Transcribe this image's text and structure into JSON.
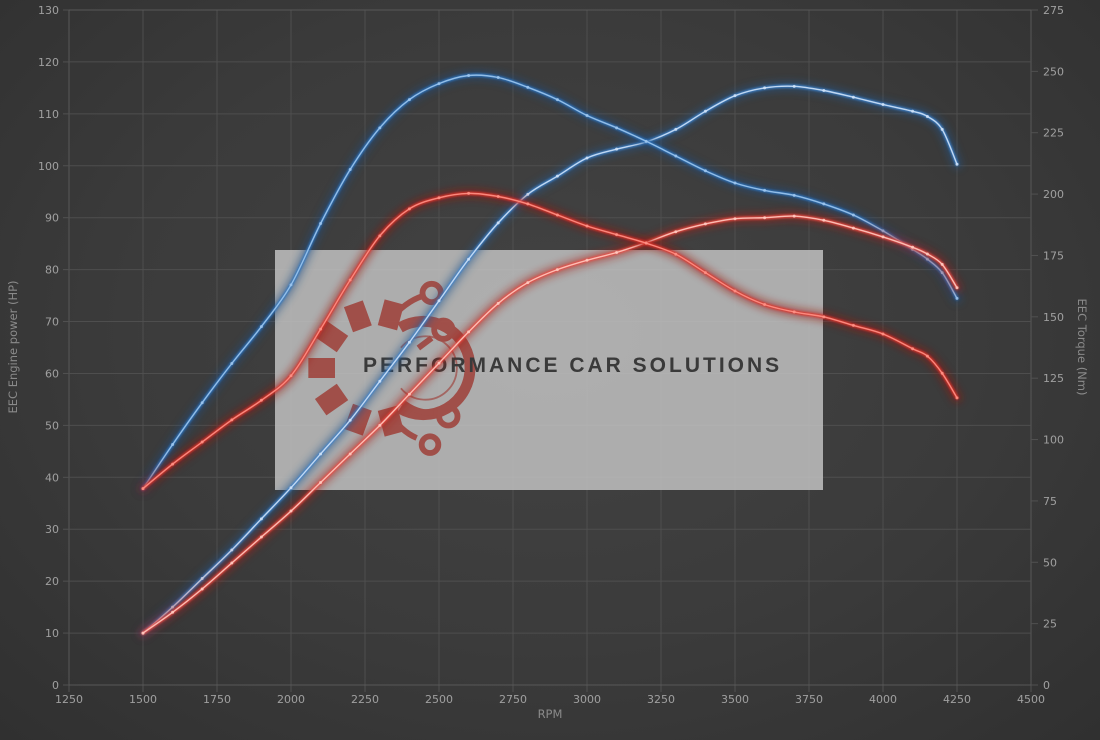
{
  "chart": {
    "x_axis": {
      "title": "RPM",
      "min": 1250,
      "max": 4500,
      "step": 250,
      "tick_labels": [
        "1250",
        "1500",
        "1750",
        "2000",
        "2250",
        "2500",
        "2750",
        "3000",
        "3250",
        "3500",
        "3750",
        "4000",
        "4250",
        "4500"
      ]
    },
    "y_axis_left": {
      "title": "EEC Engine power (HP)",
      "min": 0,
      "max": 130,
      "step": 10,
      "tick_labels": [
        "0",
        "10",
        "20",
        "30",
        "40",
        "50",
        "60",
        "70",
        "80",
        "90",
        "100",
        "110",
        "120",
        "130"
      ]
    },
    "y_axis_right": {
      "title": "EEC Torque (Nm)",
      "min": 0,
      "max": 275,
      "step": 25,
      "tick_labels": [
        "0",
        "25",
        "50",
        "75",
        "100",
        "125",
        "150",
        "175",
        "200",
        "225",
        "250",
        "275"
      ]
    }
  },
  "watermark": {
    "text": "PERFORMANCE CAR SOLUTIONS",
    "logo": "gear-with-circuit-traces"
  },
  "colors": {
    "background": "#3a3a3a",
    "grid": "#515151",
    "plot_border": "#5c5c5c",
    "tick_text": "#a0a0a0",
    "axis_title_text": "#8a8a8a",
    "watermark_bg": "rgba(198,198,198,0.82)",
    "watermark_text": "#3a3a3a",
    "logo_red": "#9e3b34"
  },
  "chart_data": {
    "type": "line",
    "title": "",
    "xlabel": "RPM",
    "x_range": [
      1250,
      4500
    ],
    "y_left_range": [
      0,
      130
    ],
    "y_right_range": [
      0,
      275
    ],
    "grid": true,
    "legend": false,
    "x": [
      1500,
      1600,
      1700,
      1800,
      1900,
      2000,
      2100,
      2200,
      2300,
      2400,
      2500,
      2600,
      2700,
      2800,
      2900,
      3000,
      3100,
      3200,
      3300,
      3400,
      3500,
      3600,
      3700,
      3800,
      3900,
      4000,
      4100,
      4150,
      4200,
      4250
    ],
    "series": [
      {
        "name": "engine-power-blue",
        "unit": "HP",
        "axis": "left",
        "color": "#3c82cc",
        "core": "#cfe2f8",
        "glow": "#24578f",
        "values": [
          10,
          15,
          20.5,
          26,
          32,
          38,
          44.5,
          51,
          58.5,
          66,
          74,
          82,
          89,
          94.5,
          98,
          101.5,
          103.2,
          104.6,
          107,
          110.5,
          113.5,
          115,
          115.3,
          114.5,
          113.2,
          111.8,
          110.5,
          109.5,
          107,
          100.3
        ]
      },
      {
        "name": "engine-torque-blue",
        "unit": "Nm",
        "axis": "right",
        "color": "#2e74c0",
        "core": "#9cc6ee",
        "glow": "#1c4d85",
        "values": [
          80,
          98,
          115,
          131,
          146,
          163,
          188,
          210,
          227,
          238.5,
          245,
          248.3,
          247.5,
          243.5,
          238.5,
          232,
          227,
          221.5,
          215.5,
          209.5,
          204.5,
          201.5,
          199.5,
          196,
          191.5,
          185,
          177.5,
          173.5,
          168,
          157.5
        ]
      },
      {
        "name": "engine-power-red",
        "unit": "HP",
        "axis": "left",
        "color": "#ef4b3f",
        "core": "#ffc9c0",
        "glow": "#a81d14",
        "values": [
          10,
          14,
          18.5,
          23.5,
          28.5,
          33.5,
          39,
          44.5,
          50,
          56,
          62,
          68,
          73.5,
          77.5,
          80,
          81.8,
          83.3,
          85.2,
          87.3,
          88.8,
          89.8,
          90,
          90.3,
          89.5,
          88,
          86.3,
          84.3,
          83,
          81,
          76.5
        ]
      },
      {
        "name": "engine-torque-red",
        "unit": "Nm",
        "axis": "right",
        "color": "#e03229",
        "core": "#ff9185",
        "glow": "#99150d",
        "values": [
          80,
          90,
          99,
          108,
          116,
          126,
          145,
          165,
          183,
          194,
          198.5,
          200.3,
          199,
          196,
          191.5,
          187,
          183.5,
          180,
          175.5,
          168,
          160.5,
          155,
          152,
          150,
          146.5,
          143,
          137,
          134,
          127,
          117
        ]
      }
    ]
  }
}
